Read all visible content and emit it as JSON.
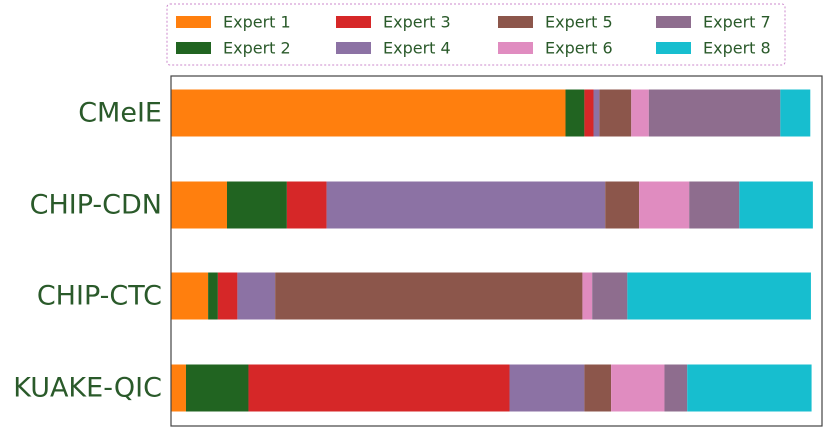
{
  "chart_data": {
    "type": "bar",
    "orientation": "horizontal",
    "stacked": true,
    "normalized": true,
    "categories": [
      "CMeIE",
      "CHIP-CDN",
      "CHIP-CTC",
      "KUAKE-QIC"
    ],
    "xlim": [
      0,
      1
    ],
    "grid": false,
    "legend_position": "top",
    "series": [
      {
        "name": "Expert 1",
        "color": "#ff7f0e",
        "values": [
          0.606,
          0.086,
          0.057,
          0.023
        ]
      },
      {
        "name": "Expert 2",
        "color": "#216421",
        "values": [
          0.029,
          0.092,
          0.015,
          0.096
        ]
      },
      {
        "name": "Expert 3",
        "color": "#d62728",
        "values": [
          0.014,
          0.061,
          0.03,
          0.401
        ]
      },
      {
        "name": "Expert 4",
        "color": "#8c72a4",
        "values": [
          0.009,
          0.428,
          0.058,
          0.115
        ]
      },
      {
        "name": "Expert 5",
        "color": "#8c564b",
        "values": [
          0.049,
          0.052,
          0.472,
          0.041
        ]
      },
      {
        "name": "Expert 6",
        "color": "#e08cc0",
        "values": [
          0.027,
          0.077,
          0.015,
          0.082
        ]
      },
      {
        "name": "Expert 7",
        "color": "#8e6d8e",
        "values": [
          0.202,
          0.077,
          0.054,
          0.035
        ]
      },
      {
        "name": "Expert 8",
        "color": "#17becf",
        "values": [
          0.046,
          0.113,
          0.282,
          0.191
        ]
      }
    ]
  },
  "colors": {
    "text": "#2a5a2a",
    "axes_border": "#444444",
    "legend_border": "#cc88cc"
  }
}
